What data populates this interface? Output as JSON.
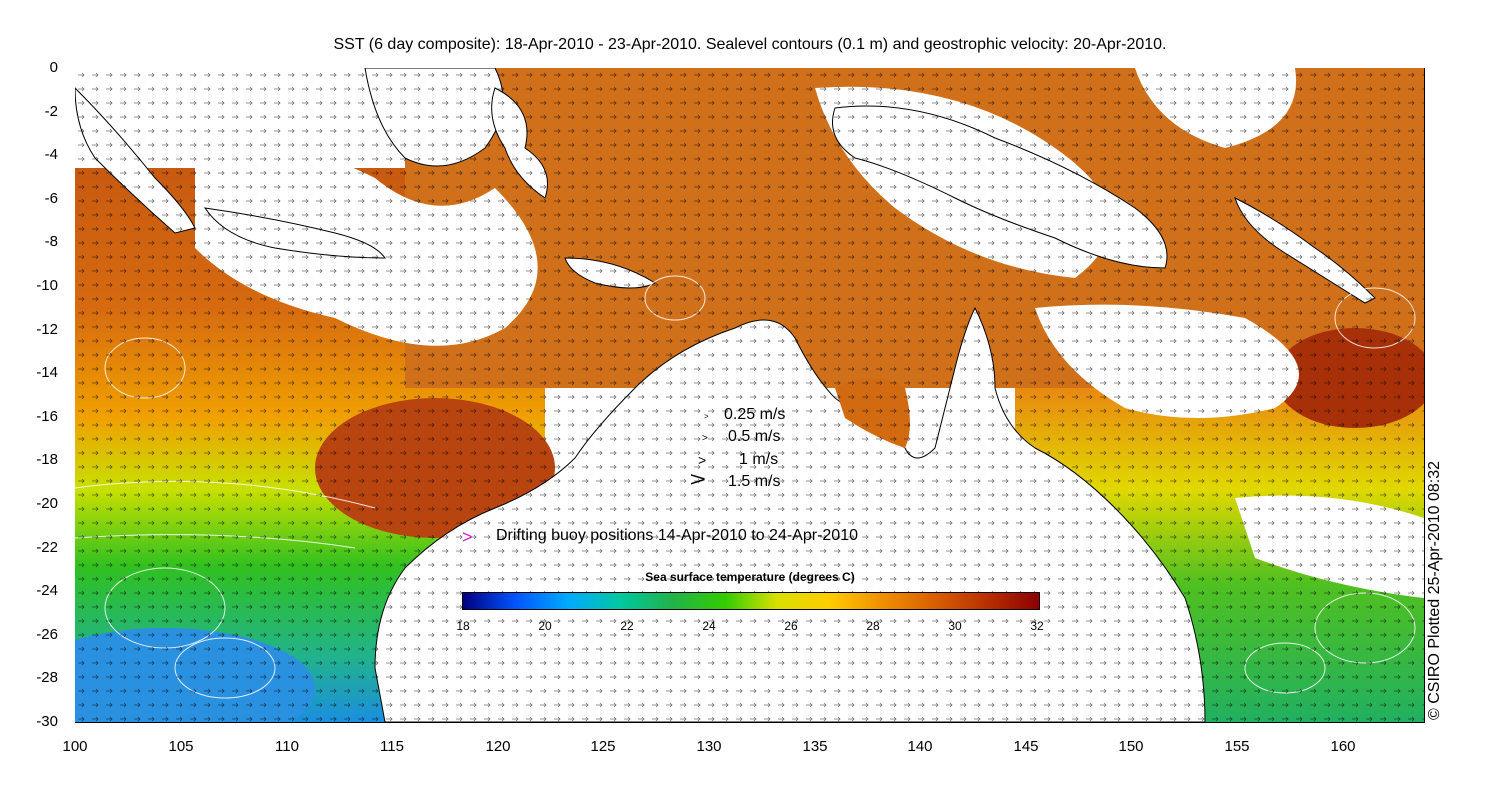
{
  "title": "SST (6 day composite): 18-Apr-2010 - 23-Apr-2010. Sealevel contours (0.1 m) and geostrophic velocity: 20-Apr-2010.",
  "credit": "© CSIRO Plotted 25-Apr-2010 08:32",
  "axes": {
    "x_ticks": [
      "100",
      "105",
      "110",
      "115",
      "120",
      "125",
      "130",
      "135",
      "140",
      "145",
      "150",
      "155",
      "160"
    ],
    "y_ticks": [
      "0",
      "-2",
      "-4",
      "-6",
      "-8",
      "-10",
      "-12",
      "-14",
      "-16",
      "-18",
      "-20",
      "-22",
      "-24",
      "-26",
      "-28",
      "-30"
    ],
    "lon_range": [
      100,
      164
    ],
    "lat_range": [
      -30,
      0
    ]
  },
  "velocity_key": [
    {
      "label": "0.25 m/s",
      "speed": 0.25
    },
    {
      "label": "0.5 m/s",
      "speed": 0.5
    },
    {
      "label": "1 m/s",
      "speed": 1
    },
    {
      "label": "1.5 m/s",
      "speed": 1.5
    }
  ],
  "buoy_legend": {
    "label": "Drifting buoy positions 14-Apr-2010 to 24-Apr-2010",
    "color": "#d020d0"
  },
  "colorbar": {
    "title": "Sea surface temperature (degrees C)",
    "ticks": [
      "18",
      "20",
      "22",
      "24",
      "26",
      "28",
      "30",
      "32"
    ],
    "range": [
      18,
      32
    ],
    "colors": [
      "#00007f",
      "#0055ff",
      "#00aaff",
      "#00c8a0",
      "#22b34a",
      "#33cc00",
      "#d8e000",
      "#ffcc00",
      "#f09000",
      "#d86000",
      "#b83000",
      "#8c0000"
    ]
  },
  "map_colors": {
    "land": "#ffffff",
    "coast": "#000000",
    "contour": "#ffffff",
    "arrow": "#000000"
  }
}
